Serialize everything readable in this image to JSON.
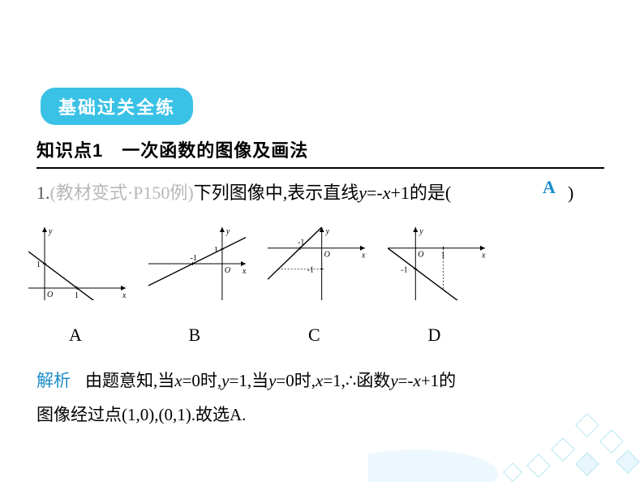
{
  "section_badge": "基础过关全练",
  "subsection": "知识点1　一次函数的图像及画法",
  "question": {
    "num": "1.",
    "source": "(教材变式·P150例)",
    "stem_before": "下列图像中,表示直线",
    "equation": "y=-x+1",
    "stem_after": "的是(",
    "answer": "A",
    "close": ")"
  },
  "graphs": {
    "axis_color": "#000000",
    "line_color": "#000000",
    "bg": "#ffffff",
    "tick_font": 10,
    "label_font": 22,
    "options": [
      {
        "letter": "A",
        "x_range": [
          -0.5,
          2.5
        ],
        "y_range": [
          -0.5,
          2.5
        ],
        "line_pts": [
          [
            -0.5,
            1.5
          ],
          [
            2.5,
            -1.5
          ]
        ],
        "x_ticks": [
          {
            "v": 1,
            "label": "1"
          }
        ],
        "y_ticks": [
          {
            "v": 1,
            "label": "1"
          }
        ],
        "origin": "O"
      },
      {
        "letter": "B",
        "x_range": [
          -2.5,
          0.8
        ],
        "y_range": [
          -2.5,
          2.5
        ],
        "line_pts": [
          [
            -2.5,
            -1.5
          ],
          [
            1.0,
            2.0
          ]
        ],
        "x_ticks": [
          {
            "v": -1,
            "label": "-1"
          }
        ],
        "y_ticks": [
          {
            "v": 1,
            "label": "1"
          }
        ],
        "origin": "O"
      },
      {
        "letter": "C",
        "x_range": [
          -2.5,
          2.0
        ],
        "y_range": [
          -2.5,
          1.0
        ],
        "line_pts": [
          [
            -2.5,
            -1.5
          ],
          [
            1.5,
            2.5
          ]
        ],
        "x_ticks": [
          {
            "v": -1,
            "label": "-1"
          }
        ],
        "y_ticks": [
          {
            "v": -1,
            "label": "-1"
          }
        ],
        "origin": "O"
      },
      {
        "letter": "D",
        "x_range": [
          -1.0,
          2.5
        ],
        "y_range": [
          -2.5,
          1.0
        ],
        "line_pts": [
          [
            -1.0,
            0.0
          ],
          [
            2.5,
            -3.5
          ]
        ],
        "x_ticks": [
          {
            "v": 1,
            "label": "1"
          }
        ],
        "y_ticks": [
          {
            "v": -1,
            "label": "-1"
          }
        ],
        "origin": "O"
      }
    ]
  },
  "explanation": {
    "label": "解析",
    "text_pre": "由题意知,当",
    "c1": "x=0时,y=1,",
    "c2": "当y=0时,x=1,",
    "therefore": "∴",
    "c3": "函数y=-x+1的",
    "line2": "图像经过点(1,0),(0,1).故选A."
  },
  "colors": {
    "badge_bg": "#39c1e6",
    "badge_text": "#ffffff",
    "accent": "#1a8cc8",
    "muted": "#b8b8b8",
    "deco_light": "#d9f2fb",
    "deco_mid": "#8dd7ec"
  }
}
